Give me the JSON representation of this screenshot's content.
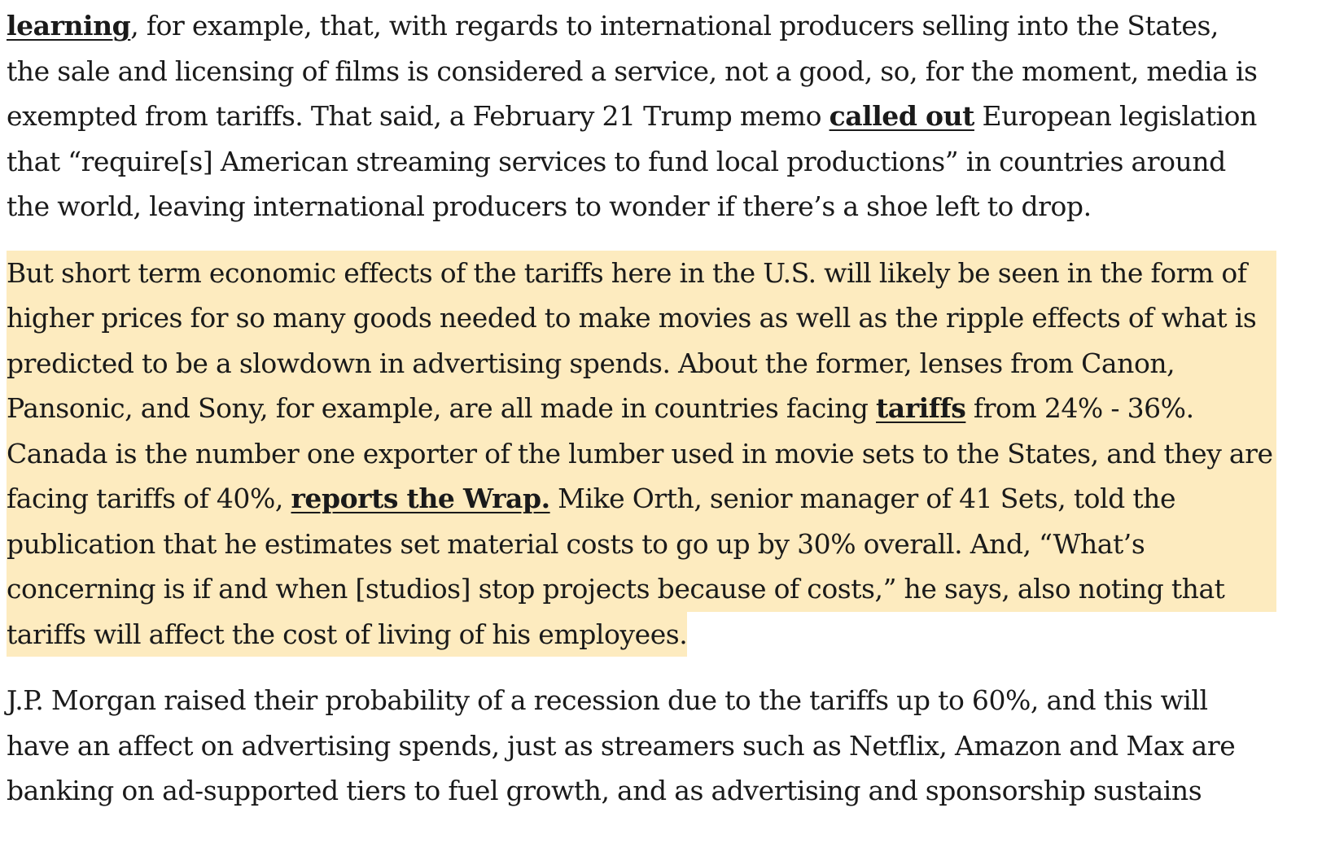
{
  "article": {
    "paragraph_1": {
      "l1_link": "learning",
      "l1_rest": ", for example, that, with regards to international producers selling into the States,",
      "l2": "the sale and licensing of films is considered a service, not a good, so, for the moment, media is",
      "l3_pre": "exempted from tariffs. That said, a February 21 Trump memo ",
      "l3_link": "called out",
      "l3_post": " European legislation",
      "l4": "that “require[s] American streaming services to fund local productions” in countries around",
      "l5": "the world, leaving international producers to wonder if there’s a shoe left to drop."
    },
    "paragraph_2": {
      "l1": "But short term economic effects of the tariffs here in the U.S. will likely be seen in the form of",
      "l2": "higher prices for so many goods needed to make movies as well as the ripple effects of what is",
      "l3": "predicted to be a slowdown in advertising spends. About the former, lenses from Canon,",
      "l4_pre": "Pansonic, and Sony, for example, are all made in countries facing ",
      "l4_link": "tariffs",
      "l4_post": " from 24% - 36%.",
      "l5": "Canada is the number one exporter of the lumber used in movie sets to the States, and they are",
      "l6_pre": "facing tariffs of 40%, ",
      "l6_link": "reports the Wrap.",
      "l6_post": " Mike Orth, senior manager of 41 Sets, told the",
      "l7": "publication that he estimates set material costs to go up by 30% overall. And, “What’s",
      "l8": "concerning is if and when [studios] stop projects because of costs,” he says, also noting that",
      "l9": "tariffs will affect the cost of living of his employees."
    },
    "paragraph_3": {
      "l1": "J.P. Morgan raised their probability of a recession due to the tariffs up to 60%, and this will",
      "l2": "have an affect on advertising spends, just as streamers such as Netflix, Amazon and Max are",
      "l3": "banking on ad-supported tiers to fuel growth, and as advertising and sponsorship sustains"
    }
  },
  "colors": {
    "highlight": "#fdebbf",
    "text": "#1a1a1a"
  }
}
